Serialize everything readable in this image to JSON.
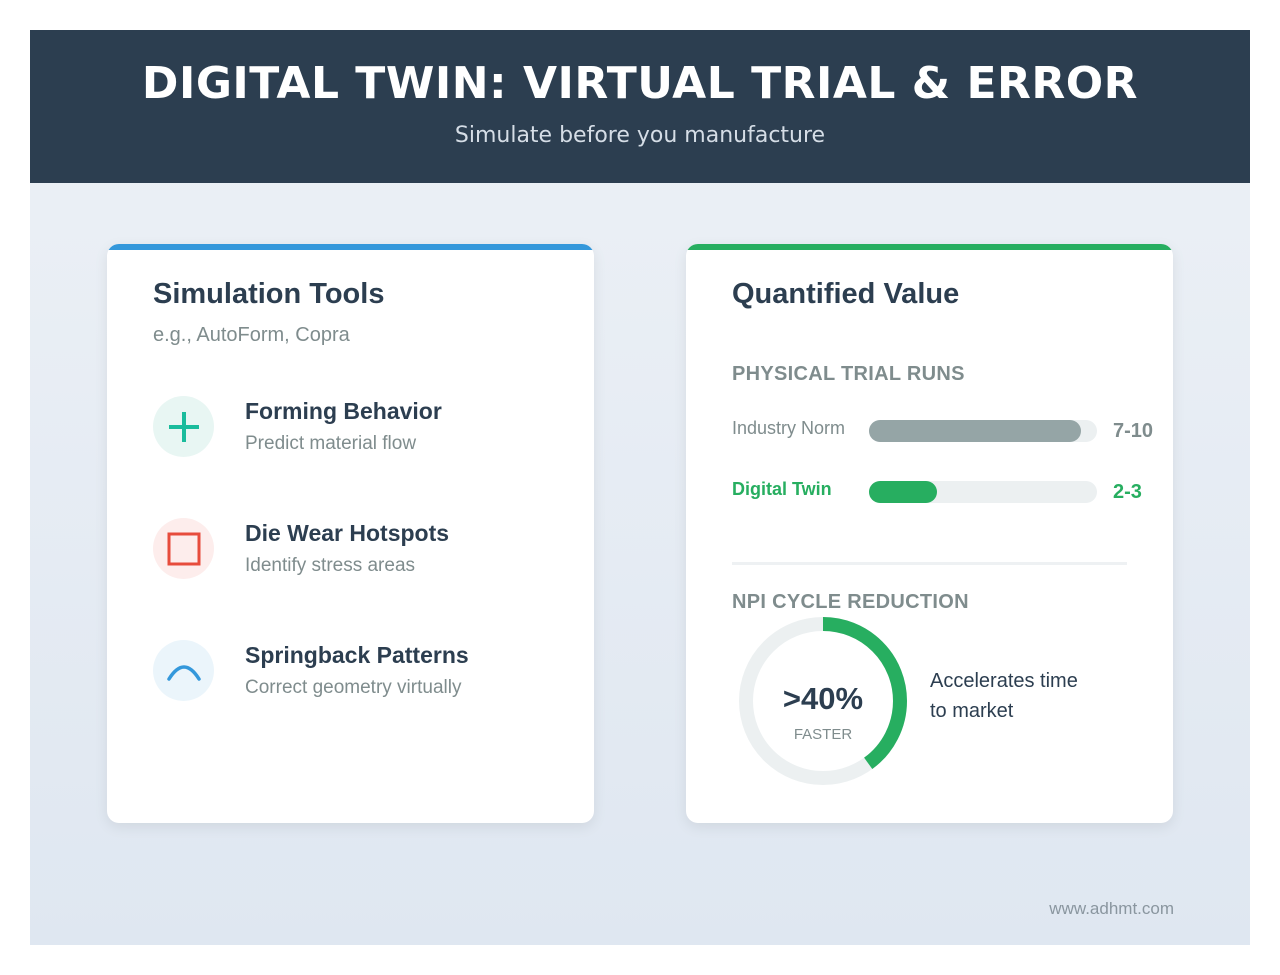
{
  "header": {
    "title": "DIGITAL TWIN: VIRTUAL TRIAL & ERROR",
    "subtitle": "Simulate before you manufacture"
  },
  "left": {
    "title": "Simulation Tools",
    "subtitle": "e.g., AutoForm, Copra",
    "accent": "#3498db",
    "items": [
      {
        "icon": "plus-icon",
        "title": "Forming Behavior",
        "desc": "Predict material flow",
        "color": "#1abc9c",
        "bg": "#e8f6f3"
      },
      {
        "icon": "square-icon",
        "title": "Die Wear Hotspots",
        "desc": "Identify stress areas",
        "color": "#e74c3c",
        "bg": "#fdedec"
      },
      {
        "icon": "arc-icon",
        "title": "Springback Patterns",
        "desc": "Correct geometry virtually",
        "color": "#3498db",
        "bg": "#ebf5fb"
      }
    ]
  },
  "right": {
    "title": "Quantified Value",
    "accent": "#27ae60",
    "trial_runs": {
      "heading": "PHYSICAL TRIAL RUNS",
      "rows": [
        {
          "label": "Industry Norm",
          "value": "7-10",
          "fill_percent": 93,
          "color": "#95a5a6",
          "label_color": "#7f8c8d",
          "value_color": "#7f8c8d"
        },
        {
          "label": "Digital Twin",
          "value": "2-3",
          "fill_percent": 30,
          "color": "#27ae60",
          "label_color": "#27ae60",
          "value_color": "#27ae60"
        }
      ]
    },
    "npi": {
      "heading": "NPI CYCLE REDUCTION",
      "value": ">40%",
      "unit": "FASTER",
      "progress_fraction": 0.4,
      "note_line1": "Accelerates time",
      "note_line2": "to market"
    }
  },
  "footer": "www.adhmt.com"
}
